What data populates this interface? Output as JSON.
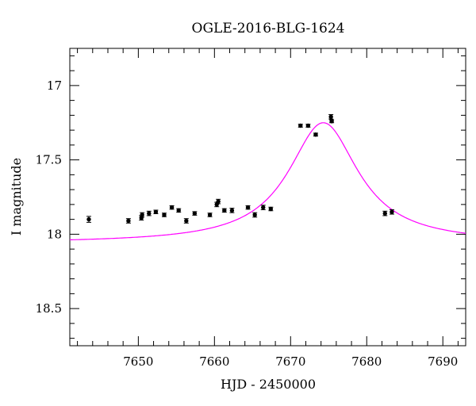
{
  "chart_data": {
    "type": "scatter",
    "title": "OGLE-2016-BLG-1624",
    "xlabel": "HJD - 2450000",
    "ylabel": "I magnitude",
    "xlim": [
      7641,
      7693
    ],
    "ylim": [
      18.75,
      16.75
    ],
    "y_inverted": true,
    "x_ticks": [
      7650,
      7660,
      7670,
      7680,
      7690
    ],
    "y_ticks": [
      17,
      17.5,
      18,
      18.5
    ],
    "x_tick_labels": [
      "7650",
      "7660",
      "7670",
      "7680",
      "7690"
    ],
    "y_tick_labels": [
      "17",
      "17.5",
      "18",
      "18.5"
    ],
    "grid": false,
    "colors": {
      "points": "#000000",
      "model": "#ff00ff",
      "axes": "#000000"
    },
    "series": [
      {
        "kind": "points_with_errorbars",
        "x": [
          7643.5,
          7648.7,
          7650.4,
          7650.5,
          7651.4,
          7652.3,
          7653.4,
          7654.4,
          7655.3,
          7656.3,
          7657.4,
          7659.4,
          7660.3,
          7660.5,
          7661.3,
          7662.3,
          7664.4,
          7665.3,
          7666.4,
          7667.4,
          7671.3,
          7672.3,
          7673.3,
          7675.3,
          7675.4,
          7682.4,
          7683.3
        ],
        "y": [
          17.9,
          17.91,
          17.89,
          17.87,
          17.86,
          17.85,
          17.87,
          17.82,
          17.84,
          17.91,
          17.86,
          17.87,
          17.8,
          17.78,
          17.84,
          17.84,
          17.82,
          17.87,
          17.82,
          17.83,
          17.27,
          17.27,
          17.33,
          17.21,
          17.24,
          17.86,
          17.85
        ],
        "err": [
          0.02,
          0.015,
          0.015,
          0.015,
          0.015,
          0.012,
          0.012,
          0.012,
          0.012,
          0.015,
          0.012,
          0.012,
          0.015,
          0.015,
          0.012,
          0.015,
          0.012,
          0.015,
          0.015,
          0.012,
          0.01,
          0.01,
          0.01,
          0.015,
          0.01,
          0.015,
          0.015
        ]
      },
      {
        "kind": "model_curve",
        "t0": 7674.3,
        "width": 5.6,
        "baseline": 18.06,
        "peak": 17.25
      }
    ]
  }
}
